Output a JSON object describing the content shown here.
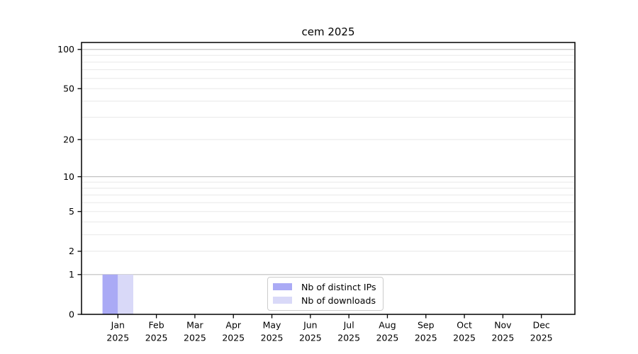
{
  "chart_data": {
    "type": "bar",
    "title": "cem 2025",
    "categories": [
      "Jan",
      "Feb",
      "Mar",
      "Apr",
      "May",
      "Jun",
      "Jul",
      "Aug",
      "Sep",
      "Oct",
      "Nov",
      "Dec"
    ],
    "category_year": "2025",
    "series": [
      {
        "name": "Nb of distinct IPs",
        "color": "#aaaaf5",
        "values": [
          1,
          0,
          0,
          0,
          0,
          0,
          0,
          0,
          0,
          0,
          0,
          0
        ]
      },
      {
        "name": "Nb of downloads",
        "color": "#d9d9f8",
        "values": [
          1,
          0,
          0,
          0,
          0,
          0,
          0,
          0,
          0,
          0,
          0,
          0
        ]
      }
    ],
    "xlabel": "",
    "ylabel": "",
    "y_scale": "log1p",
    "ylim": [
      0,
      113
    ],
    "y_ticks": [
      0,
      1,
      2,
      5,
      10,
      20,
      50,
      100
    ],
    "y_major_dark_gridlines": [
      1,
      10,
      100
    ],
    "y_major_light_gridlines": [
      2,
      5,
      20,
      50
    ],
    "y_minor_gridlines": [
      3,
      4,
      6,
      7,
      8,
      9,
      30,
      40,
      60,
      70,
      80,
      90
    ],
    "grid": true,
    "legend_position": "bottom-center",
    "colors": {
      "bar_distinct_ips": "#aaaaf5",
      "bar_downloads": "#d9d9f8",
      "gridline_major": "#bdbdbd",
      "gridline_minor": "#e8e8e8",
      "axis": "#000000",
      "legend_border": "#cccccc",
      "background": "#ffffff",
      "text": "#000000"
    }
  }
}
